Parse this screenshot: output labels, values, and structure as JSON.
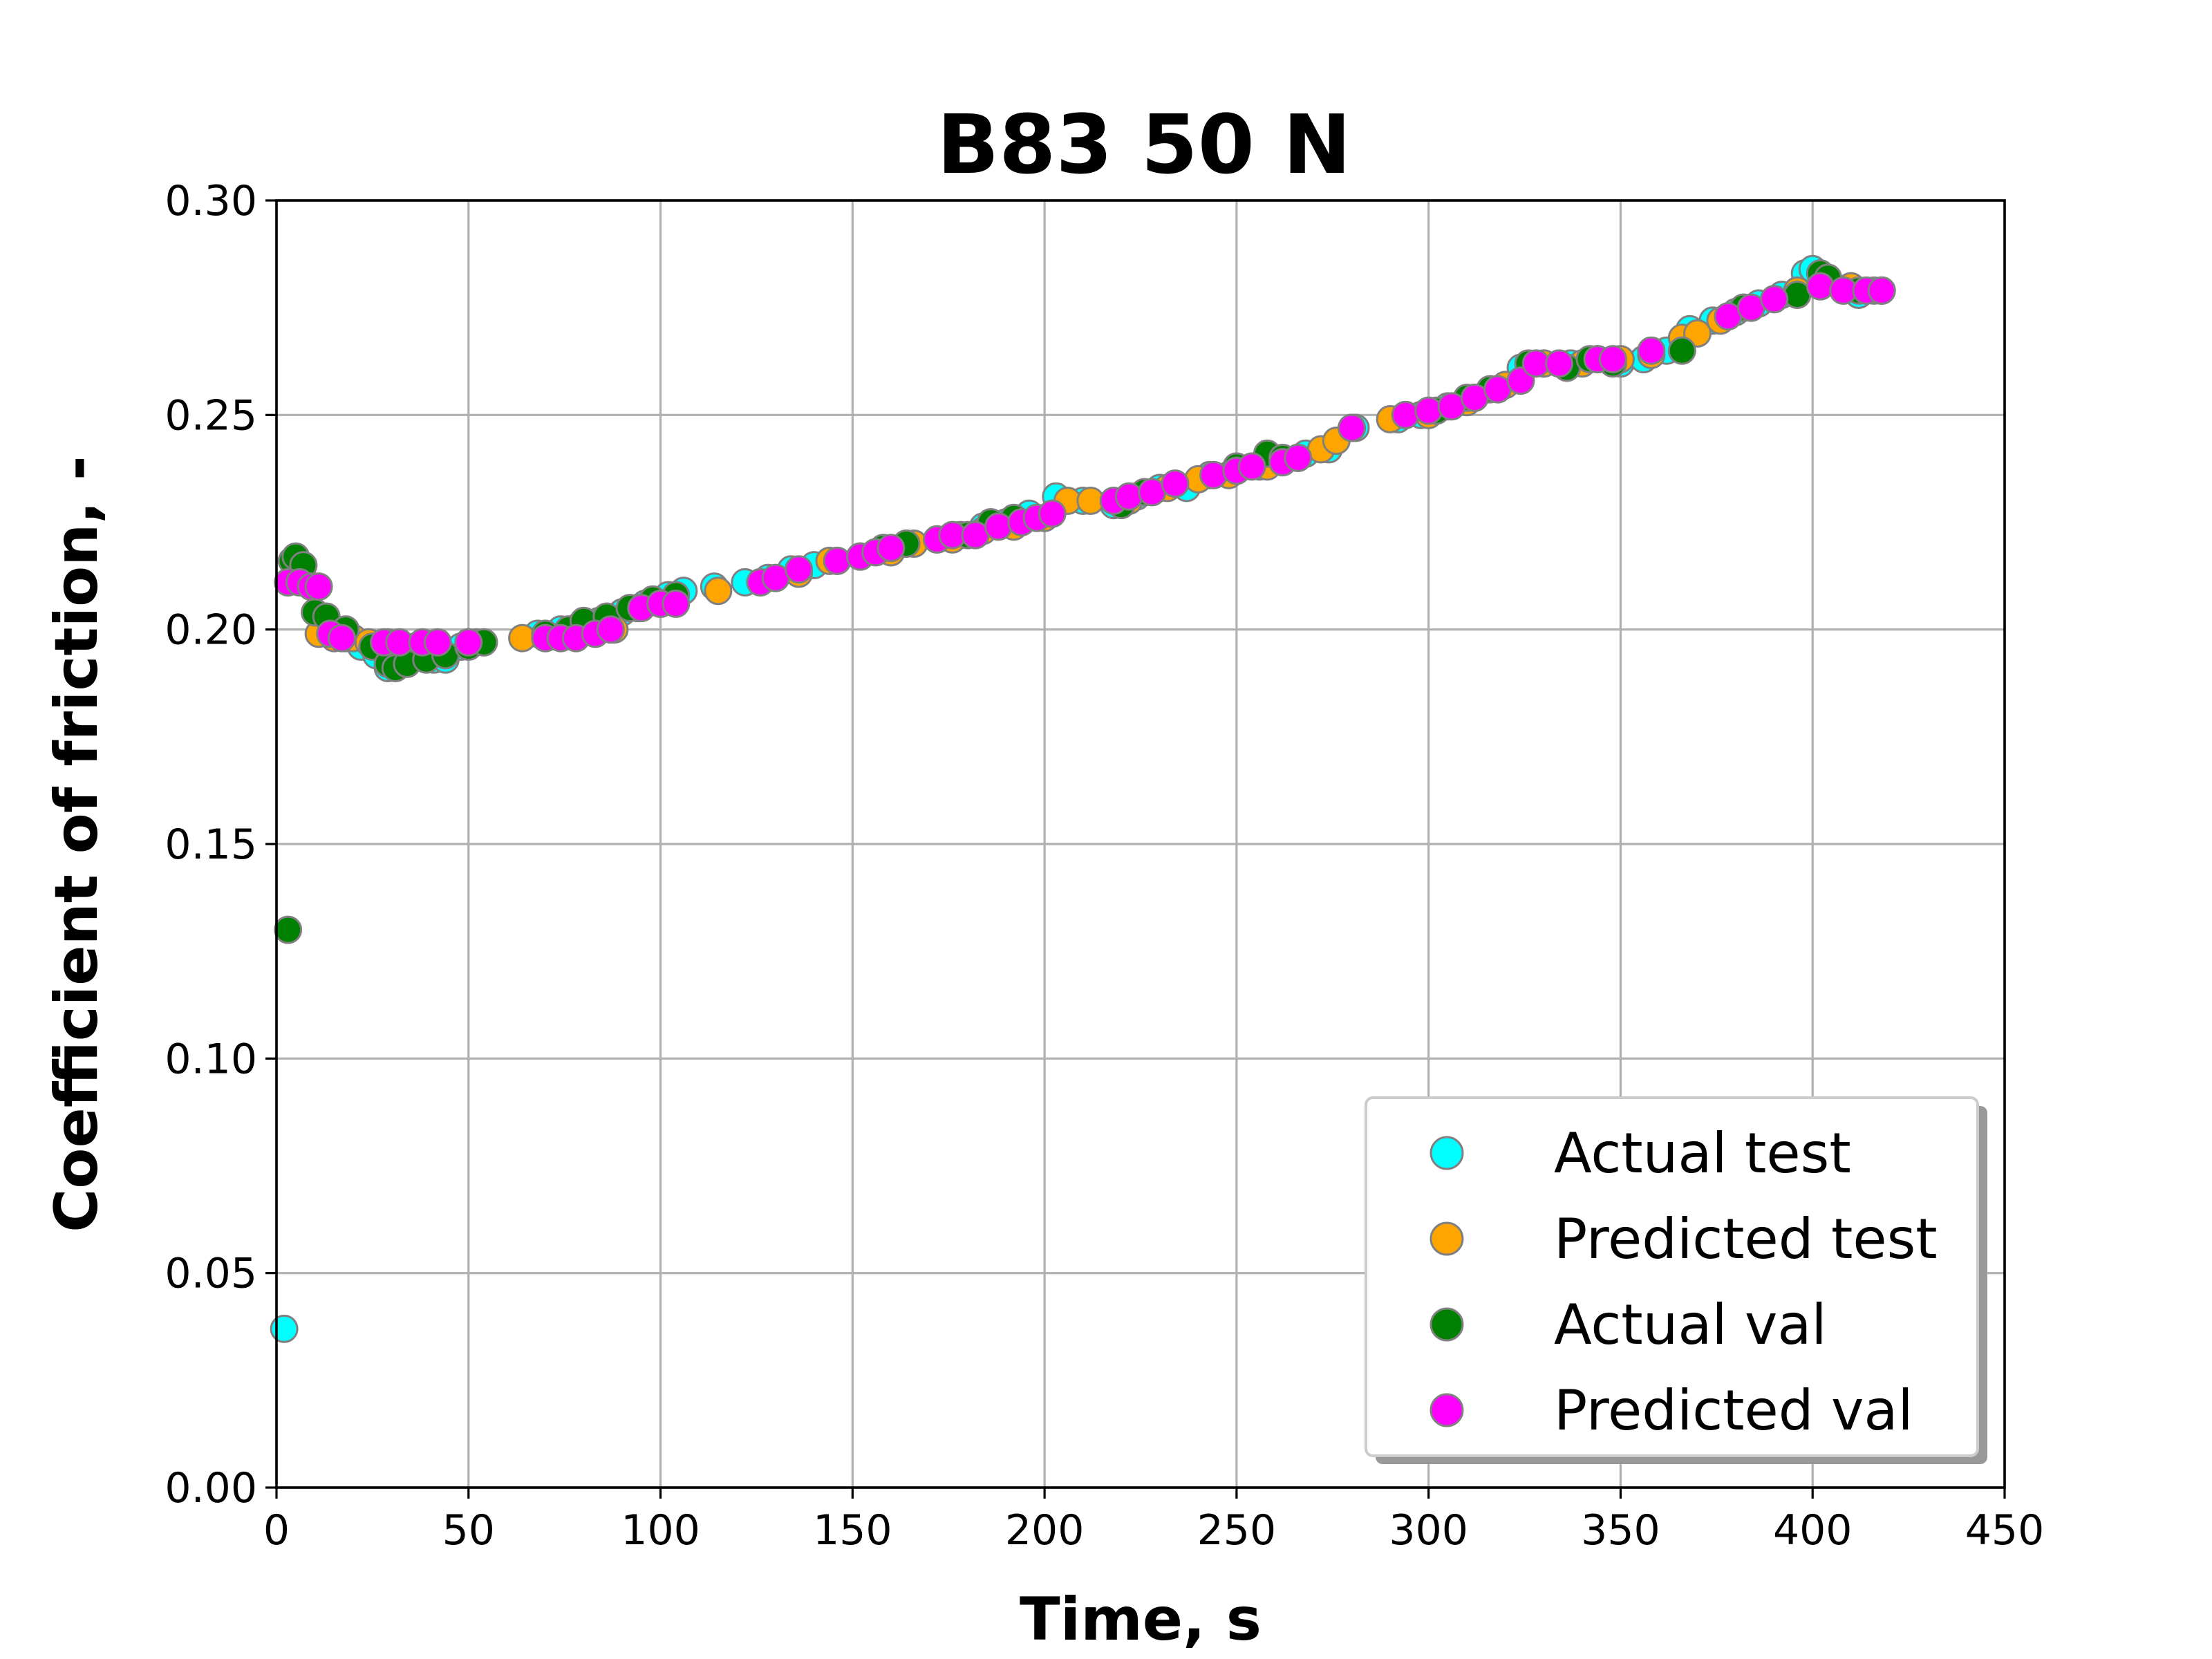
{
  "chart_data": {
    "type": "scatter",
    "title": "B83 50 N",
    "xlabel": "Time, s",
    "ylabel": "Coefficient of friction, -",
    "xlim": [
      0,
      450
    ],
    "ylim": [
      0,
      0.3
    ],
    "xticks": [
      "0",
      "50",
      "100",
      "150",
      "200",
      "250",
      "300",
      "350",
      "400",
      "450"
    ],
    "yticks": [
      "0.00",
      "0.05",
      "0.10",
      "0.15",
      "0.20",
      "0.25",
      "0.30"
    ],
    "grid": true,
    "legend_position": "lower-right",
    "series": [
      {
        "name": "Actual test",
        "color": "#00ffff",
        "points": [
          [
            2,
            0.037
          ],
          [
            3,
            0.211
          ],
          [
            6,
            0.211
          ],
          [
            10,
            0.21
          ],
          [
            14,
            0.2
          ],
          [
            18,
            0.198
          ],
          [
            22,
            0.196
          ],
          [
            26,
            0.194
          ],
          [
            29,
            0.191
          ],
          [
            33,
            0.192
          ],
          [
            37,
            0.194
          ],
          [
            41,
            0.193
          ],
          [
            44,
            0.193
          ],
          [
            48,
            0.196
          ],
          [
            52,
            0.197
          ],
          [
            68,
            0.199
          ],
          [
            74,
            0.2
          ],
          [
            79,
            0.201
          ],
          [
            84,
            0.202
          ],
          [
            90,
            0.204
          ],
          [
            96,
            0.206
          ],
          [
            102,
            0.208
          ],
          [
            106,
            0.209
          ],
          [
            114,
            0.21
          ],
          [
            122,
            0.211
          ],
          [
            128,
            0.212
          ],
          [
            134,
            0.214
          ],
          [
            140,
            0.215
          ],
          [
            146,
            0.216
          ],
          [
            152,
            0.217
          ],
          [
            158,
            0.219
          ],
          [
            164,
            0.22
          ],
          [
            172,
            0.221
          ],
          [
            178,
            0.222
          ],
          [
            184,
            0.224
          ],
          [
            190,
            0.225
          ],
          [
            196,
            0.227
          ],
          [
            203,
            0.231
          ],
          [
            210,
            0.23
          ],
          [
            218,
            0.229
          ],
          [
            224,
            0.231
          ],
          [
            230,
            0.233
          ],
          [
            237,
            0.233
          ],
          [
            243,
            0.236
          ],
          [
            250,
            0.237
          ],
          [
            256,
            0.238
          ],
          [
            262,
            0.239
          ],
          [
            268,
            0.241
          ],
          [
            274,
            0.242
          ],
          [
            281,
            0.247
          ],
          [
            292,
            0.249
          ],
          [
            298,
            0.25
          ],
          [
            305,
            0.252
          ],
          [
            312,
            0.254
          ],
          [
            318,
            0.256
          ],
          [
            324,
            0.261
          ],
          [
            330,
            0.262
          ],
          [
            337,
            0.262
          ],
          [
            344,
            0.263
          ],
          [
            350,
            0.262
          ],
          [
            356,
            0.263
          ],
          [
            362,
            0.265
          ],
          [
            368,
            0.27
          ],
          [
            374,
            0.272
          ],
          [
            380,
            0.274
          ],
          [
            386,
            0.276
          ],
          [
            392,
            0.278
          ],
          [
            398,
            0.283
          ],
          [
            400,
            0.284
          ],
          [
            404,
            0.281
          ],
          [
            408,
            0.279
          ],
          [
            412,
            0.278
          ],
          [
            416,
            0.279
          ]
        ]
      },
      {
        "name": "Predicted test",
        "color": "#ffa500",
        "points": [
          [
            11,
            0.199
          ],
          [
            15,
            0.198
          ],
          [
            20,
            0.198
          ],
          [
            24,
            0.197
          ],
          [
            29,
            0.197
          ],
          [
            36,
            0.196
          ],
          [
            42,
            0.196
          ],
          [
            50,
            0.197
          ],
          [
            64,
            0.198
          ],
          [
            70,
            0.198
          ],
          [
            76,
            0.199
          ],
          [
            82,
            0.2
          ],
          [
            88,
            0.2
          ],
          [
            94,
            0.205
          ],
          [
            100,
            0.206
          ],
          [
            115,
            0.209
          ],
          [
            126,
            0.211
          ],
          [
            136,
            0.213
          ],
          [
            144,
            0.216
          ],
          [
            152,
            0.217
          ],
          [
            160,
            0.218
          ],
          [
            166,
            0.22
          ],
          [
            176,
            0.221
          ],
          [
            184,
            0.223
          ],
          [
            192,
            0.224
          ],
          [
            200,
            0.226
          ],
          [
            206,
            0.23
          ],
          [
            212,
            0.23
          ],
          [
            222,
            0.23
          ],
          [
            232,
            0.233
          ],
          [
            240,
            0.235
          ],
          [
            248,
            0.236
          ],
          [
            258,
            0.238
          ],
          [
            266,
            0.24
          ],
          [
            272,
            0.242
          ],
          [
            276,
            0.244
          ],
          [
            290,
            0.249
          ],
          [
            300,
            0.25
          ],
          [
            310,
            0.253
          ],
          [
            320,
            0.257
          ],
          [
            330,
            0.262
          ],
          [
            340,
            0.262
          ],
          [
            350,
            0.263
          ],
          [
            358,
            0.264
          ],
          [
            366,
            0.268
          ],
          [
            370,
            0.269
          ],
          [
            376,
            0.272
          ],
          [
            382,
            0.275
          ],
          [
            390,
            0.277
          ],
          [
            396,
            0.279
          ],
          [
            402,
            0.28
          ],
          [
            410,
            0.28
          ],
          [
            418,
            0.279
          ]
        ]
      },
      {
        "name": "Actual val",
        "color": "#008000",
        "points": [
          [
            3,
            0.13
          ],
          [
            4,
            0.216
          ],
          [
            5,
            0.217
          ],
          [
            7,
            0.215
          ],
          [
            9,
            0.21
          ],
          [
            10,
            0.204
          ],
          [
            13,
            0.203
          ],
          [
            18,
            0.2
          ],
          [
            25,
            0.196
          ],
          [
            29,
            0.192
          ],
          [
            31,
            0.191
          ],
          [
            34,
            0.192
          ],
          [
            39,
            0.193
          ],
          [
            44,
            0.194
          ],
          [
            50,
            0.196
          ],
          [
            54,
            0.197
          ],
          [
            70,
            0.199
          ],
          [
            76,
            0.2
          ],
          [
            80,
            0.202
          ],
          [
            86,
            0.203
          ],
          [
            92,
            0.205
          ],
          [
            98,
            0.207
          ],
          [
            104,
            0.208
          ],
          [
            158,
            0.219
          ],
          [
            164,
            0.22
          ],
          [
            180,
            0.222
          ],
          [
            186,
            0.225
          ],
          [
            192,
            0.226
          ],
          [
            220,
            0.229
          ],
          [
            226,
            0.232
          ],
          [
            250,
            0.238
          ],
          [
            258,
            0.241
          ],
          [
            262,
            0.24
          ],
          [
            280,
            0.247
          ],
          [
            294,
            0.25
          ],
          [
            302,
            0.251
          ],
          [
            310,
            0.254
          ],
          [
            316,
            0.256
          ],
          [
            326,
            0.262
          ],
          [
            336,
            0.261
          ],
          [
            342,
            0.263
          ],
          [
            348,
            0.262
          ],
          [
            366,
            0.265
          ],
          [
            382,
            0.275
          ],
          [
            396,
            0.278
          ],
          [
            402,
            0.283
          ],
          [
            404,
            0.282
          ],
          [
            412,
            0.279
          ],
          [
            418,
            0.279
          ]
        ]
      },
      {
        "name": "Predicted val",
        "color": "#ff00ff",
        "points": [
          [
            3,
            0.211
          ],
          [
            6,
            0.211
          ],
          [
            9,
            0.21
          ],
          [
            11,
            0.21
          ],
          [
            14,
            0.199
          ],
          [
            17,
            0.198
          ],
          [
            28,
            0.197
          ],
          [
            32,
            0.197
          ],
          [
            38,
            0.197
          ],
          [
            42,
            0.197
          ],
          [
            50,
            0.197
          ],
          [
            70,
            0.198
          ],
          [
            74,
            0.198
          ],
          [
            78,
            0.198
          ],
          [
            83,
            0.199
          ],
          [
            87,
            0.2
          ],
          [
            95,
            0.205
          ],
          [
            100,
            0.206
          ],
          [
            104,
            0.206
          ],
          [
            126,
            0.211
          ],
          [
            130,
            0.212
          ],
          [
            136,
            0.214
          ],
          [
            146,
            0.216
          ],
          [
            152,
            0.217
          ],
          [
            156,
            0.218
          ],
          [
            160,
            0.219
          ],
          [
            172,
            0.221
          ],
          [
            176,
            0.222
          ],
          [
            182,
            0.222
          ],
          [
            188,
            0.224
          ],
          [
            194,
            0.225
          ],
          [
            198,
            0.226
          ],
          [
            202,
            0.227
          ],
          [
            218,
            0.23
          ],
          [
            222,
            0.231
          ],
          [
            228,
            0.232
          ],
          [
            234,
            0.234
          ],
          [
            244,
            0.236
          ],
          [
            250,
            0.237
          ],
          [
            254,
            0.238
          ],
          [
            262,
            0.239
          ],
          [
            266,
            0.24
          ],
          [
            280,
            0.247
          ],
          [
            294,
            0.25
          ],
          [
            300,
            0.251
          ],
          [
            306,
            0.252
          ],
          [
            312,
            0.254
          ],
          [
            318,
            0.256
          ],
          [
            324,
            0.258
          ],
          [
            328,
            0.262
          ],
          [
            334,
            0.262
          ],
          [
            344,
            0.263
          ],
          [
            348,
            0.263
          ],
          [
            358,
            0.265
          ],
          [
            378,
            0.273
          ],
          [
            384,
            0.275
          ],
          [
            390,
            0.277
          ],
          [
            402,
            0.28
          ],
          [
            408,
            0.279
          ],
          [
            414,
            0.279
          ],
          [
            418,
            0.279
          ]
        ]
      }
    ]
  }
}
